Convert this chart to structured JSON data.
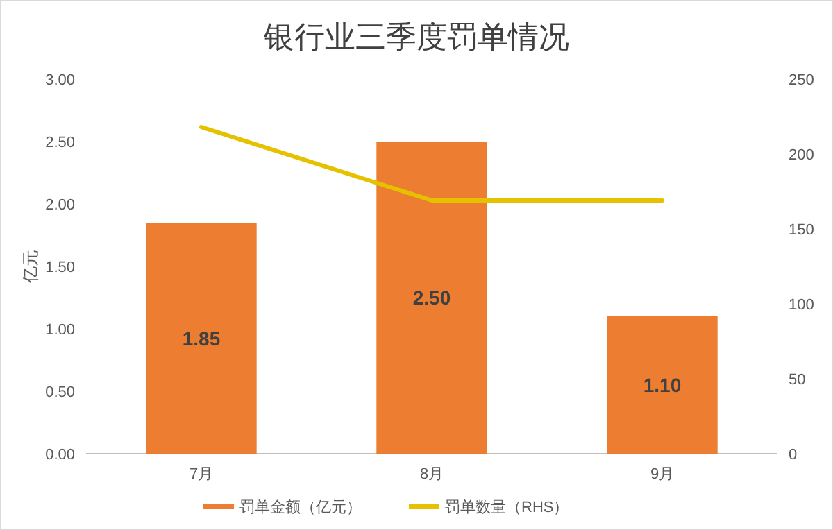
{
  "chart_data": {
    "type": "bar",
    "title": "银行业三季度罚单情况",
    "ylabel": "亿元",
    "categories": [
      "7月",
      "8月",
      "9月"
    ],
    "series": [
      {
        "name": "罚单金额（亿元）",
        "color": "#ed7d31",
        "values": [
          1.85,
          2.5,
          1.1
        ],
        "value_labels": [
          "1.85",
          "2.50",
          "1.10"
        ]
      },
      {
        "name": "罚单数量（RHS）",
        "type": "line",
        "axis": "y2",
        "color": "#e5c100",
        "values": [
          218,
          169,
          169
        ]
      }
    ],
    "ylim": [
      0,
      3
    ],
    "yticks": [
      {
        "value": 0,
        "label": "0.00"
      },
      {
        "value": 0.5,
        "label": "0.50"
      },
      {
        "value": 1,
        "label": "1.00"
      },
      {
        "value": 1.5,
        "label": "1.50"
      },
      {
        "value": 2,
        "label": "2.00"
      },
      {
        "value": 2.5,
        "label": "2.50"
      },
      {
        "value": 3,
        "label": "3.00"
      }
    ],
    "y2lim": [
      0,
      250
    ],
    "y2ticks": [
      0,
      50,
      100,
      150,
      200,
      250
    ],
    "legend": "bottom",
    "grid": false
  }
}
